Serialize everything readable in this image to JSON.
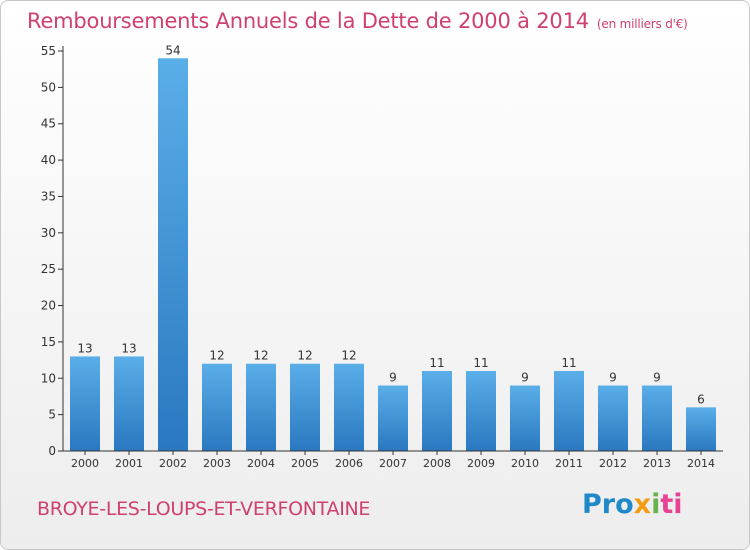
{
  "chart_data": {
    "type": "bar",
    "title": "Remboursements Annuels de la Dette de 2000 à 2014",
    "unit_note": "(en milliers d'€)",
    "categories": [
      "2000",
      "2001",
      "2002",
      "2003",
      "2004",
      "2005",
      "2006",
      "2007",
      "2008",
      "2009",
      "2010",
      "2011",
      "2012",
      "2013",
      "2014"
    ],
    "values": [
      13,
      13,
      54,
      12,
      12,
      12,
      12,
      9,
      11,
      11,
      9,
      11,
      9,
      9,
      6
    ],
    "ylim": [
      0,
      55
    ],
    "yticks": [
      0,
      5,
      10,
      15,
      20,
      25,
      30,
      35,
      40,
      45,
      50,
      55
    ],
    "xlabel": "",
    "ylabel": "",
    "grid": false,
    "bar_color_top": "#5aaee8",
    "bar_color_bottom": "#2a78c0"
  },
  "footer": {
    "location": "BROYE-LES-LOUPS-ET-VERFONTAINE",
    "logo_parts": [
      "Pro",
      "x",
      "i",
      "ti"
    ]
  }
}
